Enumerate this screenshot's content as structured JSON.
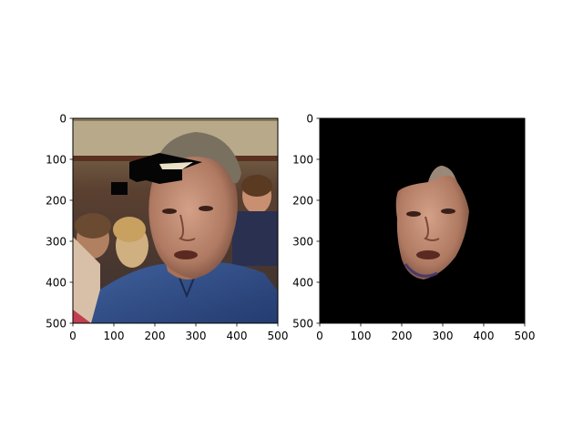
{
  "chart_data": [
    {
      "type": "image",
      "title": "",
      "xlabel": "",
      "ylabel": "",
      "xlim": [
        0,
        500
      ],
      "ylim": [
        500,
        0
      ],
      "xticks": [
        "0",
        "100",
        "200",
        "300",
        "400",
        "500"
      ],
      "yticks": [
        "0",
        "100",
        "200",
        "300",
        "400",
        "500"
      ],
      "image_description": "photo of a man in a blue shirt in a crowd with a black occlusion patch on the forehead"
    },
    {
      "type": "image",
      "title": "",
      "xlabel": "",
      "ylabel": "",
      "xlim": [
        0,
        500
      ],
      "ylim": [
        500,
        0
      ],
      "xticks": [
        "0",
        "100",
        "200",
        "300",
        "400",
        "500"
      ],
      "yticks": [
        "0",
        "100",
        "200",
        "300",
        "400",
        "500"
      ],
      "image_description": "segmented face region on a black background"
    }
  ],
  "colors": {
    "axes_frame": "#000000",
    "background": "#ffffff",
    "mask_background": "#000000",
    "shirt": "#2f4f8a",
    "skin": "#c08f75"
  }
}
